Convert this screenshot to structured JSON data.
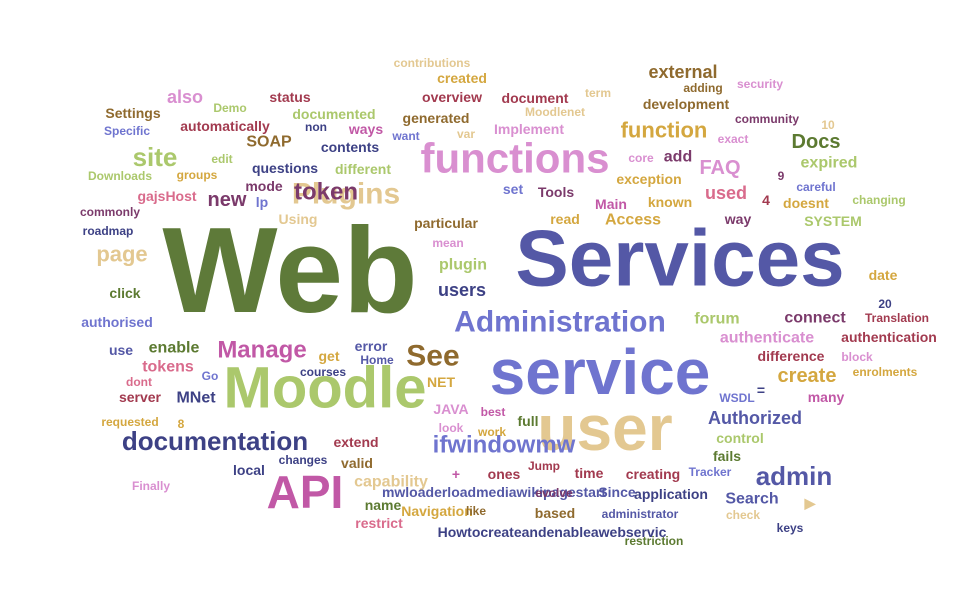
{
  "colors": {
    "olive": "#5e7a39",
    "indigo": "#5458a6",
    "periwinkle": "#6f74cf",
    "sand": "#e3c891",
    "lime": "#abc86c",
    "magenta": "#c158a6",
    "orchid": "#d98fd0",
    "brown": "#8f6a2e",
    "maroon": "#a23a4f",
    "rose": "#d96b8c",
    "gold": "#d4a73f",
    "navy": "#3d4185",
    "plum": "#7b3a6b",
    "green": "#5c7a31"
  },
  "words": [
    {
      "text": "Web",
      "color": "olive"
    },
    {
      "text": "Services",
      "color": "indigo"
    },
    {
      "text": "service",
      "color": "periwinkle"
    },
    {
      "text": "user",
      "color": "sand"
    },
    {
      "text": "Moodle",
      "color": "lime"
    },
    {
      "text": "functions",
      "color": "orchid"
    },
    {
      "text": "Plugins",
      "color": "sand"
    },
    {
      "text": "Administration",
      "color": "periwinkle"
    },
    {
      "text": "API",
      "color": "magenta"
    },
    {
      "text": "documentation",
      "color": "navy"
    },
    {
      "text": "token",
      "color": "plum"
    },
    {
      "text": "See",
      "color": "brown"
    },
    {
      "text": "ifwindowmw",
      "color": "periwinkle"
    },
    {
      "text": "site",
      "color": "lime"
    },
    {
      "text": "Manage",
      "color": "magenta"
    },
    {
      "text": "function",
      "color": "gold"
    },
    {
      "text": "admin",
      "color": "indigo"
    },
    {
      "text": "Docs",
      "color": "green"
    },
    {
      "text": "Authorized",
      "color": "indigo"
    },
    {
      "text": "external",
      "color": "brown"
    },
    {
      "text": "page",
      "color": "sand"
    },
    {
      "text": "FAQ",
      "color": "orchid"
    },
    {
      "text": "create",
      "color": "gold"
    },
    {
      "text": "used",
      "color": "rose"
    },
    {
      "text": "new",
      "color": "plum"
    },
    {
      "text": "users",
      "color": "navy"
    },
    {
      "text": "also",
      "color": "orchid"
    },
    {
      "text": "add",
      "color": "plum"
    },
    {
      "text": "authenticate",
      "color": "orchid"
    },
    {
      "text": "connect",
      "color": "plum"
    },
    {
      "text": "expired",
      "color": "lime"
    },
    {
      "text": "capability",
      "color": "sand"
    },
    {
      "text": "Search",
      "color": "indigo"
    },
    {
      "text": "SOAP",
      "color": "brown"
    },
    {
      "text": "forum",
      "color": "lime"
    },
    {
      "text": "tokens",
      "color": "rose"
    },
    {
      "text": "enable",
      "color": "green"
    },
    {
      "text": "MNet",
      "color": "navy"
    },
    {
      "text": "Access",
      "color": "gold"
    },
    {
      "text": "plugin",
      "color": "lime"
    },
    {
      "text": "overview",
      "color": "maroon"
    },
    {
      "text": "document",
      "color": "maroon"
    },
    {
      "text": "development",
      "color": "brown"
    },
    {
      "text": "documented",
      "color": "lime"
    },
    {
      "text": "different",
      "color": "lime"
    },
    {
      "text": "questions",
      "color": "navy"
    },
    {
      "text": "status",
      "color": "maroon"
    },
    {
      "text": "Settings",
      "color": "brown"
    },
    {
      "text": "automatically",
      "color": "maroon"
    },
    {
      "text": "contents",
      "color": "navy"
    },
    {
      "text": "generated",
      "color": "brown"
    },
    {
      "text": "Implement",
      "color": "orchid"
    },
    {
      "text": "created",
      "color": "gold"
    },
    {
      "text": "contributions",
      "color": "sand"
    },
    {
      "text": "security",
      "color": "orchid"
    },
    {
      "text": "adding",
      "color": "brown"
    },
    {
      "text": "community",
      "color": "plum"
    },
    {
      "text": "exact",
      "color": "orchid"
    },
    {
      "text": "10",
      "color": "sand"
    },
    {
      "text": "term",
      "color": "sand"
    },
    {
      "text": "Moodlenet",
      "color": "sand"
    },
    {
      "text": "Demo",
      "color": "lime"
    },
    {
      "text": "Specific",
      "color": "periwinkle"
    },
    {
      "text": "non",
      "color": "navy"
    },
    {
      "text": "ways",
      "color": "magenta"
    },
    {
      "text": "want",
      "color": "periwinkle"
    },
    {
      "text": "var",
      "color": "sand"
    },
    {
      "text": "edit",
      "color": "lime"
    },
    {
      "text": "Downloads",
      "color": "lime"
    },
    {
      "text": "groups",
      "color": "gold"
    },
    {
      "text": "mode",
      "color": "plum"
    },
    {
      "text": "gajsHost",
      "color": "rose"
    },
    {
      "text": "lp",
      "color": "periwinkle"
    },
    {
      "text": "set",
      "color": "periwinkle"
    },
    {
      "text": "Tools",
      "color": "plum"
    },
    {
      "text": "core",
      "color": "orchid"
    },
    {
      "text": "exception",
      "color": "gold"
    },
    {
      "text": "known",
      "color": "gold"
    },
    {
      "text": "Main",
      "color": "magenta"
    },
    {
      "text": "9",
      "color": "plum"
    },
    {
      "text": "4",
      "color": "maroon"
    },
    {
      "text": "careful",
      "color": "periwinkle"
    },
    {
      "text": "doesnt",
      "color": "gold"
    },
    {
      "text": "changing",
      "color": "lime"
    },
    {
      "text": "SYSTEM",
      "color": "lime"
    },
    {
      "text": "commonly",
      "color": "plum"
    },
    {
      "text": "Using",
      "color": "sand"
    },
    {
      "text": "particular",
      "color": "brown"
    },
    {
      "text": "read",
      "color": "gold"
    },
    {
      "text": "way",
      "color": "plum"
    },
    {
      "text": "roadmap",
      "color": "navy"
    },
    {
      "text": "mean",
      "color": "orchid"
    },
    {
      "text": "date",
      "color": "gold"
    },
    {
      "text": "click",
      "color": "green"
    },
    {
      "text": "20",
      "color": "navy"
    },
    {
      "text": "authorised",
      "color": "periwinkle"
    },
    {
      "text": "Translation",
      "color": "maroon"
    },
    {
      "text": "authentication",
      "color": "maroon"
    },
    {
      "text": "use",
      "color": "indigo"
    },
    {
      "text": "error",
      "color": "indigo"
    },
    {
      "text": "get",
      "color": "gold"
    },
    {
      "text": "Home",
      "color": "indigo"
    },
    {
      "text": "difference",
      "color": "maroon"
    },
    {
      "text": "block",
      "color": "orchid"
    },
    {
      "text": "dont",
      "color": "rose"
    },
    {
      "text": "Go",
      "color": "periwinkle"
    },
    {
      "text": "courses",
      "color": "navy"
    },
    {
      "text": "NET",
      "color": "gold"
    },
    {
      "text": "enrolments",
      "color": "gold"
    },
    {
      "text": "server",
      "color": "maroon"
    },
    {
      "text": "WSDL",
      "color": "periwinkle"
    },
    {
      "text": "many",
      "color": "magenta"
    },
    {
      "text": "=",
      "color": "navy"
    },
    {
      "text": "requested",
      "color": "gold"
    },
    {
      "text": "8",
      "color": "gold"
    },
    {
      "text": "JAVA",
      "color": "orchid"
    },
    {
      "text": "best",
      "color": "magenta"
    },
    {
      "text": "full",
      "color": "green"
    },
    {
      "text": "look",
      "color": "orchid"
    },
    {
      "text": "work",
      "color": "gold"
    },
    {
      "text": "control",
      "color": "lime"
    },
    {
      "text": "extend",
      "color": "maroon"
    },
    {
      "text": "valid",
      "color": "brown"
    },
    {
      "text": "local",
      "color": "navy"
    },
    {
      "text": "fails",
      "color": "green"
    },
    {
      "text": "changes",
      "color": "navy"
    },
    {
      "text": "Tracker",
      "color": "periwinkle"
    },
    {
      "text": "Jump",
      "color": "maroon"
    },
    {
      "text": "+",
      "color": "magenta"
    },
    {
      "text": "ones",
      "color": "maroon"
    },
    {
      "text": "time",
      "color": "maroon"
    },
    {
      "text": "creating",
      "color": "maroon"
    },
    {
      "text": "Finally",
      "color": "orchid"
    },
    {
      "text": "mwloaderloadmediawikipagestart",
      "color": "indigo"
    },
    {
      "text": "application",
      "color": "navy"
    },
    {
      "text": "Since",
      "color": "indigo"
    },
    {
      "text": "evolve",
      "color": "plum"
    },
    {
      "text": "▶",
      "color": "sand"
    },
    {
      "text": "name",
      "color": "green"
    },
    {
      "text": "check",
      "color": "sand"
    },
    {
      "text": "restrict",
      "color": "rose"
    },
    {
      "text": "Navigation",
      "color": "gold"
    },
    {
      "text": "like",
      "color": "brown"
    },
    {
      "text": "based",
      "color": "brown"
    },
    {
      "text": "administrator",
      "color": "indigo"
    },
    {
      "text": "keys",
      "color": "navy"
    },
    {
      "text": "Howtocreateandenableawebservic",
      "color": "navy"
    },
    {
      "text": "restriction",
      "color": "green"
    },
    {
      "text": "implemented",
      "color": "lime"
    }
  ]
}
